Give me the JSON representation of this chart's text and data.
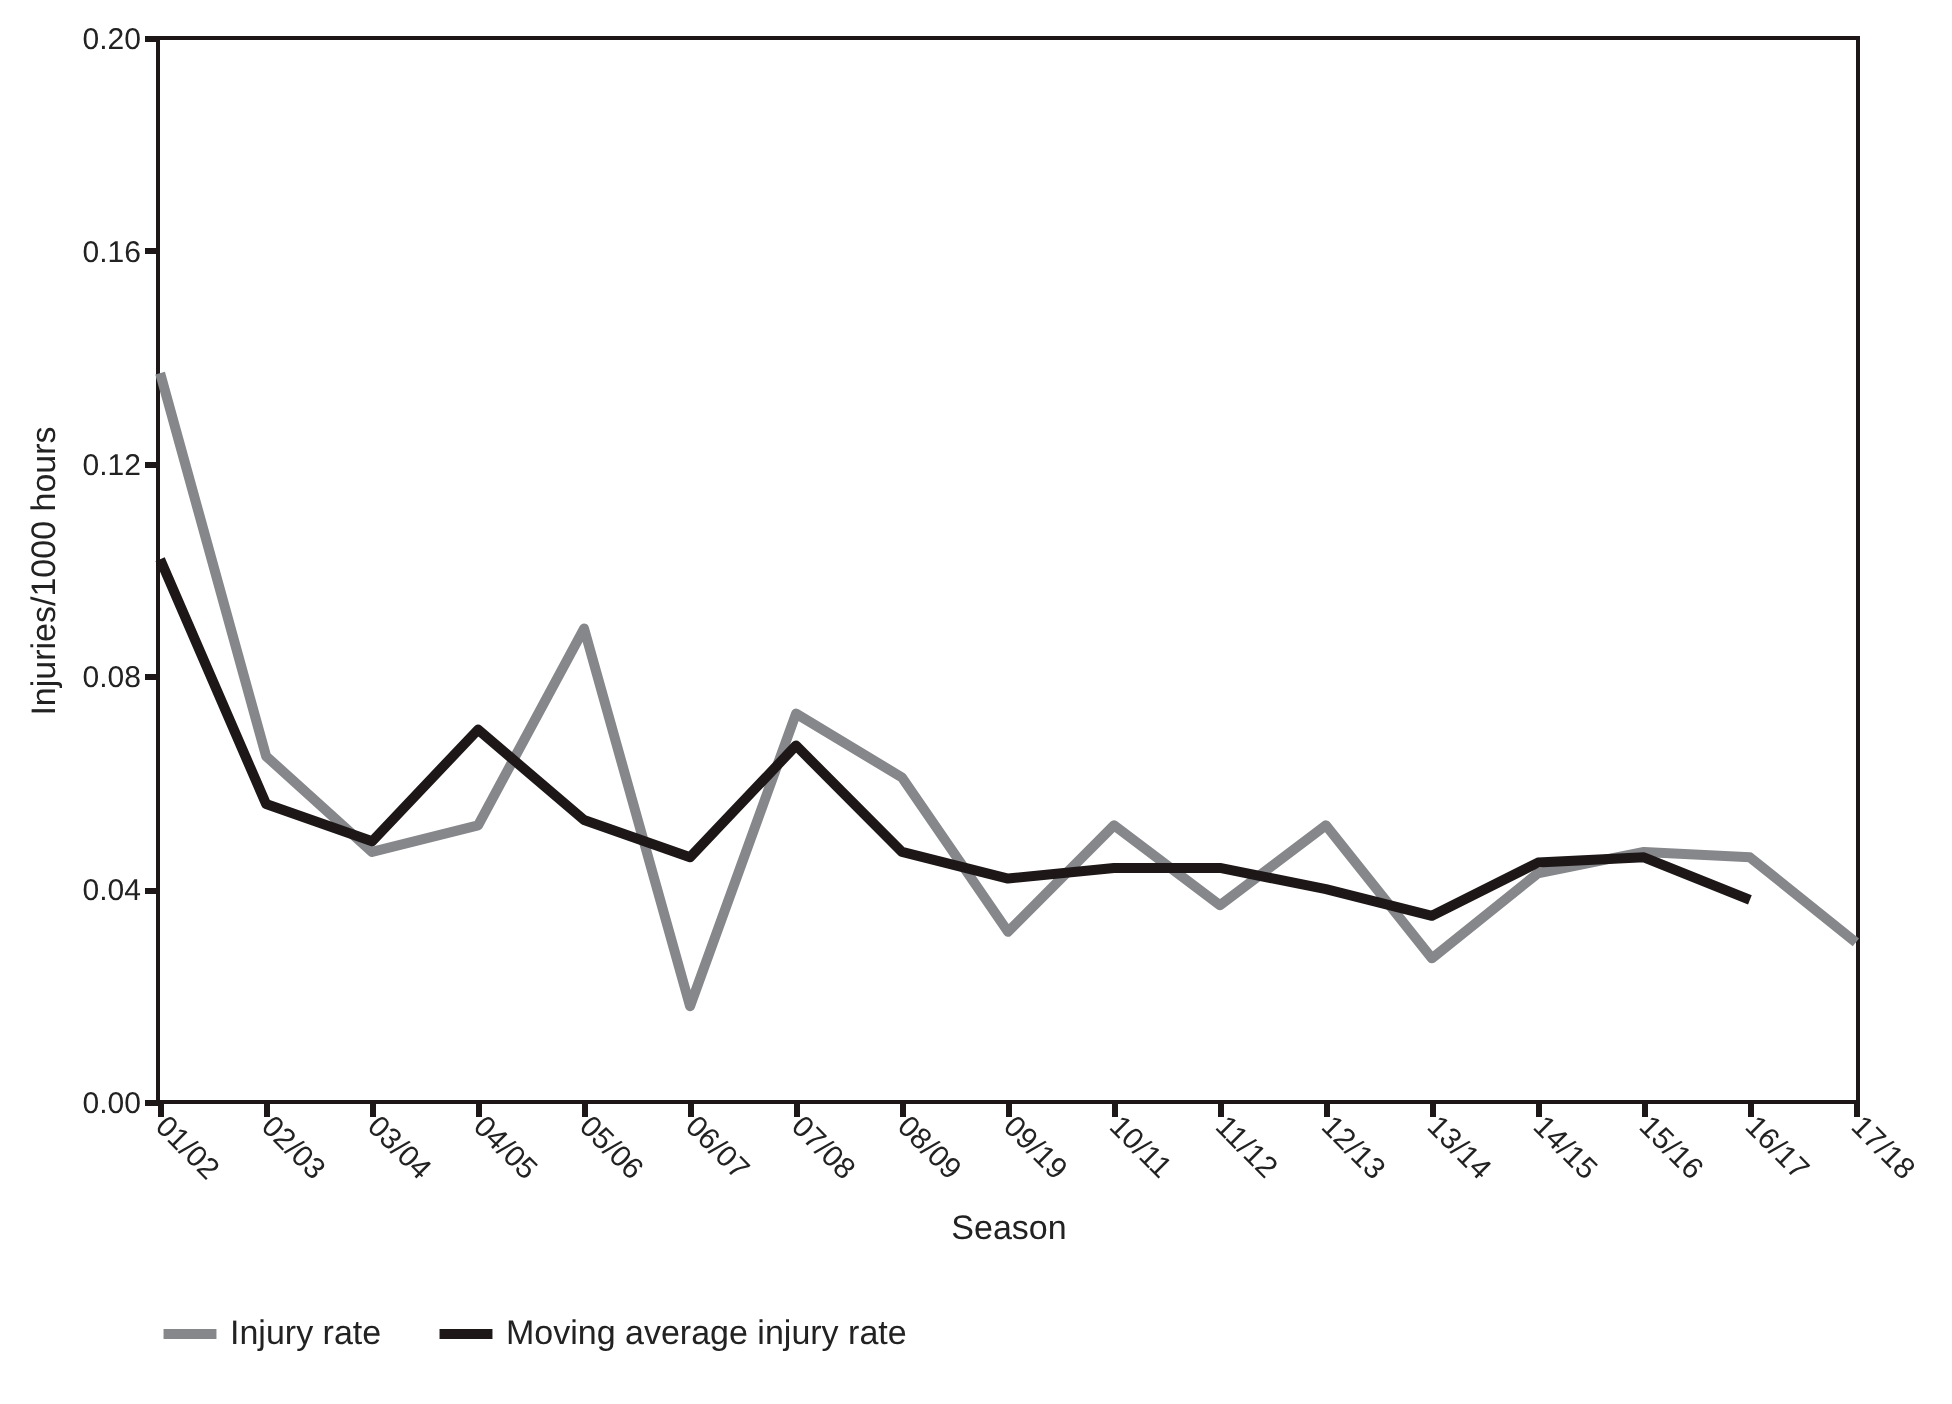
{
  "chart_data": {
    "type": "line",
    "xlabel": "Season",
    "ylabel": "Injuries/1000 hours",
    "categories": [
      "01/02",
      "02/03",
      "03/04",
      "04/05",
      "05/06",
      "06/07",
      "07/08",
      "08/09",
      "09/19",
      "10/11",
      "11/12",
      "12/13",
      "13/14",
      "14/15",
      "15/16",
      "16/17",
      "17/18"
    ],
    "series": [
      {
        "name": "Injury rate",
        "color": "#85878a",
        "values": [
          0.137,
          0.065,
          0.047,
          0.052,
          0.089,
          0.018,
          0.073,
          0.061,
          0.032,
          0.052,
          0.037,
          0.052,
          0.027,
          0.043,
          0.047,
          0.046,
          0.03
        ]
      },
      {
        "name": "Moving average injury rate",
        "color": "#1e1718",
        "values": [
          0.102,
          0.056,
          0.049,
          0.07,
          0.053,
          0.046,
          0.067,
          0.047,
          0.042,
          0.044,
          0.044,
          0.04,
          0.035,
          0.045,
          0.046,
          0.038,
          null
        ]
      }
    ],
    "ylim": [
      0,
      0.2
    ],
    "yticks": [
      {
        "value": 0,
        "label": "0.00"
      },
      {
        "value": 0.04,
        "label": "0.04"
      },
      {
        "value": 0.08,
        "label": "0.08"
      },
      {
        "value": 0.12,
        "label": "0.12"
      },
      {
        "value": 0.16,
        "label": "0.16"
      },
      {
        "value": 0.2,
        "label": "0.20"
      }
    ],
    "grid": false,
    "legend": "bottom",
    "marker": "none",
    "line_style": "solid"
  }
}
